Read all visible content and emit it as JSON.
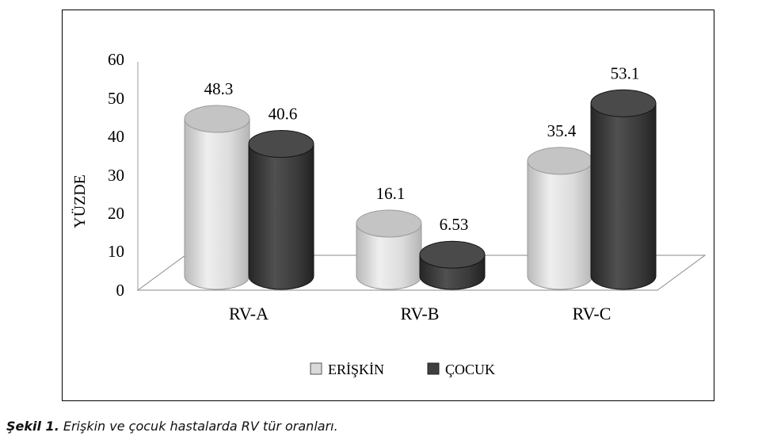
{
  "chart_data": {
    "type": "bar",
    "ylabel": "YÜZDE",
    "ylim": [
      0,
      60
    ],
    "yticks": [
      0,
      10,
      20,
      30,
      40,
      50,
      60
    ],
    "categories": [
      "RV-A",
      "RV-B",
      "RV-C"
    ],
    "series": [
      {
        "name": "ERİŞKİN",
        "values": [
          48.3,
          16.1,
          35.4
        ],
        "labels": [
          "48.3",
          "16.1",
          "35.4"
        ],
        "color": "#d9d9d9"
      },
      {
        "name": "ÇOCUK",
        "values": [
          40.6,
          6.53,
          53.1
        ],
        "labels": [
          "40.6",
          "6.53",
          "53.1"
        ],
        "color": "#3f3f3f"
      }
    ],
    "legend_position": "bottom"
  },
  "caption": {
    "label": "Şekil 1.",
    "text": "Erişkin ve çocuk hastalarda RV tür oranları."
  }
}
